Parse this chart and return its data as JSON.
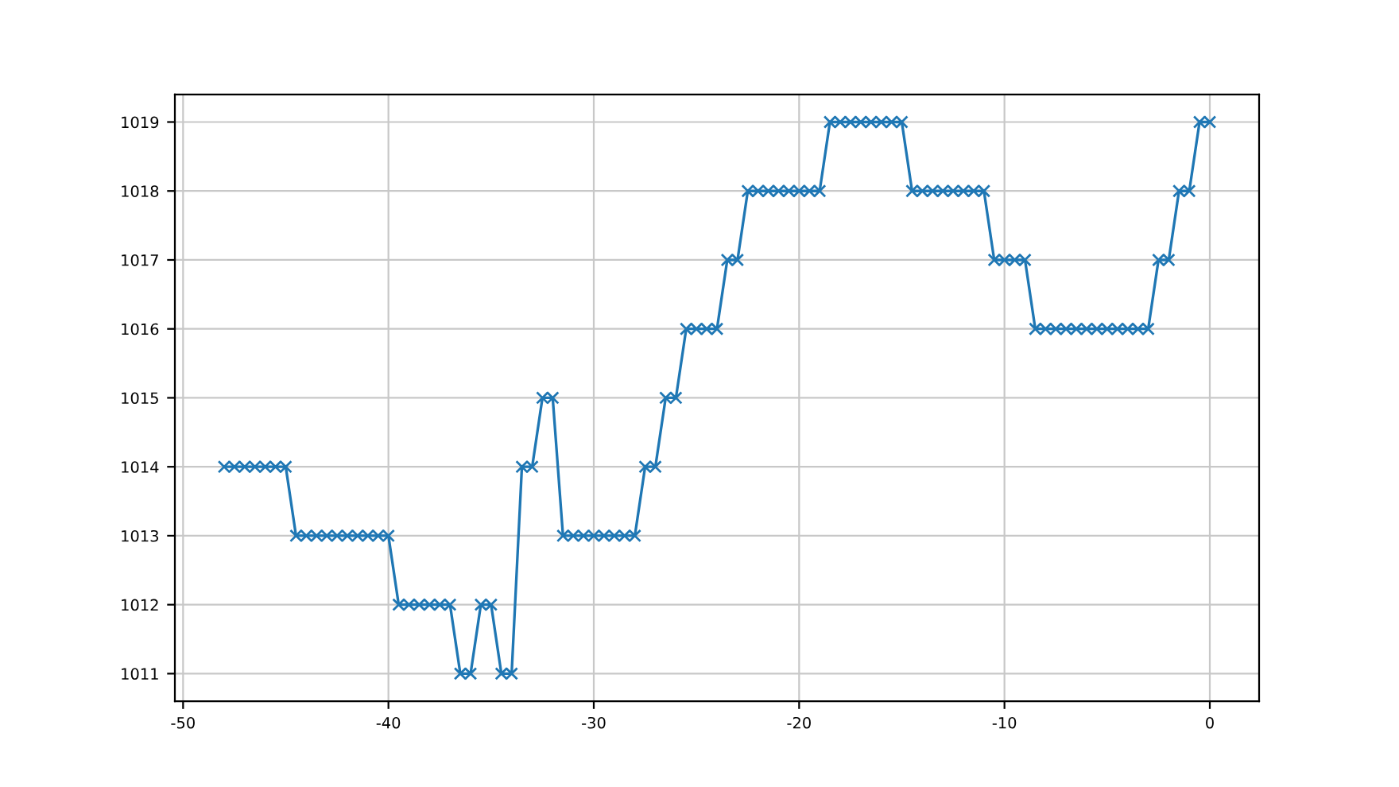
{
  "chart_data": {
    "type": "line",
    "marker": "cross",
    "line_style": "solid",
    "grid": true,
    "x": [
      -48,
      -47.5,
      -47,
      -46.5,
      -46,
      -45.5,
      -45,
      -44.5,
      -44,
      -43.5,
      -43,
      -42.5,
      -42,
      -41.5,
      -41,
      -40.5,
      -40,
      -39.5,
      -39,
      -38.5,
      -38,
      -37.5,
      -37,
      -36.5,
      -36,
      -35.5,
      -35,
      -34.5,
      -34,
      -33.5,
      -33,
      -32.5,
      -32,
      -31.5,
      -31,
      -30.5,
      -30,
      -29.5,
      -29,
      -28.5,
      -28,
      -27.5,
      -27,
      -26.5,
      -26,
      -25.5,
      -25,
      -24.5,
      -24,
      -23.5,
      -23,
      -22.5,
      -22,
      -21.5,
      -21,
      -20.5,
      -20,
      -19.5,
      -19,
      -18.5,
      -18,
      -17.5,
      -17,
      -16.5,
      -16,
      -15.5,
      -15,
      -14.5,
      -14,
      -13.5,
      -13,
      -12.5,
      -12,
      -11.5,
      -11,
      -10.5,
      -10,
      -9.5,
      -9,
      -8.5,
      -8,
      -7.5,
      -7,
      -6.5,
      -6,
      -5.5,
      -5,
      -4.5,
      -4,
      -3.5,
      -3,
      -2.5,
      -2,
      -1.5,
      -1,
      -0.5,
      0
    ],
    "series": [
      {
        "color": "#1f77b4",
        "values": [
          1014,
          1014,
          1014,
          1014,
          1014,
          1014,
          1014,
          1013,
          1013,
          1013,
          1013,
          1013,
          1013,
          1013,
          1013,
          1013,
          1013,
          1012,
          1012,
          1012,
          1012,
          1012,
          1012,
          1011,
          1011,
          1012,
          1012,
          1011,
          1011,
          1014,
          1014,
          1015,
          1015,
          1013,
          1013,
          1013,
          1013,
          1013,
          1013,
          1013,
          1013,
          1014,
          1014,
          1015,
          1015,
          1016,
          1016,
          1016,
          1016,
          1017,
          1017,
          1018,
          1018,
          1018,
          1018,
          1018,
          1018,
          1018,
          1018,
          1019,
          1019,
          1019,
          1019,
          1019,
          1019,
          1019,
          1019,
          1018,
          1018,
          1018,
          1018,
          1018,
          1018,
          1018,
          1018,
          1017,
          1017,
          1017,
          1017,
          1016,
          1016,
          1016,
          1016,
          1016,
          1016,
          1016,
          1016,
          1016,
          1016,
          1016,
          1016,
          1017,
          1017,
          1018,
          1018,
          1019,
          1019
        ]
      }
    ],
    "xlim": [
      -50.4,
      2.4
    ],
    "xticks": [
      -50,
      -40,
      -30,
      -20,
      -10,
      0
    ],
    "ylim": [
      1010.6,
      1019.4
    ],
    "yticks": [
      1011,
      1012,
      1013,
      1014,
      1015,
      1016,
      1017,
      1018,
      1019
    ]
  }
}
